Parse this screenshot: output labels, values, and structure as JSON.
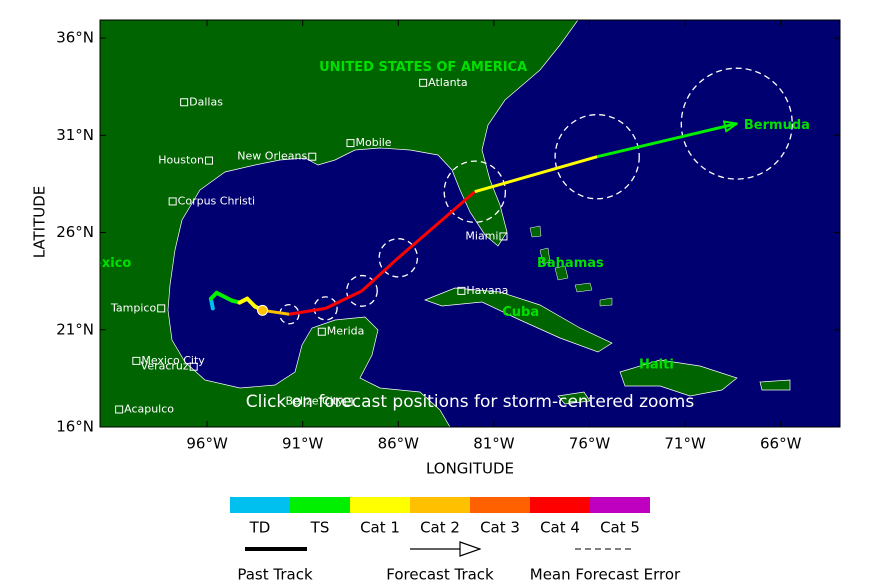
{
  "map": {
    "x_label": "LONGITUDE",
    "y_label": "LATITUDE",
    "lon_range": [
      -101.6,
      -62.9
    ],
    "lat_range": [
      16,
      36.93
    ],
    "x_ticks": [
      {
        "value": -96,
        "label": "96°W"
      },
      {
        "value": -91,
        "label": "91°W"
      },
      {
        "value": -86,
        "label": "86°W"
      },
      {
        "value": -81,
        "label": "81°W"
      },
      {
        "value": -76,
        "label": "76°W"
      },
      {
        "value": -71,
        "label": "71°W"
      },
      {
        "value": -66,
        "label": "66°W"
      }
    ],
    "y_ticks": [
      {
        "value": 16,
        "label": "16°N"
      },
      {
        "value": 21,
        "label": "21°N"
      },
      {
        "value": 26,
        "label": "26°N"
      },
      {
        "value": 31,
        "label": "31°N"
      },
      {
        "value": 36,
        "label": "36°N"
      }
    ],
    "note": "Click on forecast positions for storm-centered zooms"
  },
  "regions": [
    {
      "name": "UNITED STATES OF AMERICA",
      "lon": -84.7,
      "lat": 34.5
    },
    {
      "name": "Bermuda",
      "lon": -66.2,
      "lat": 31.5
    },
    {
      "name": "Bahamas",
      "lon": -77.0,
      "lat": 24.4
    },
    {
      "name": "Cuba",
      "lon": -79.6,
      "lat": 21.9
    },
    {
      "name": "Haiti",
      "lon": -72.5,
      "lat": 19.2
    },
    {
      "name": "Mexico",
      "lon": -101.3,
      "lat": 24.4
    }
  ],
  "cities": [
    {
      "name": "Dallas",
      "lon": -97.2,
      "lat": 32.7,
      "label_side": "right"
    },
    {
      "name": "Atlanta",
      "lon": -84.7,
      "lat": 33.7,
      "label_side": "right"
    },
    {
      "name": "Mobile",
      "lon": -88.5,
      "lat": 30.6,
      "label_side": "right"
    },
    {
      "name": "New Orleans",
      "lon": -90.5,
      "lat": 29.9,
      "label_side": "left"
    },
    {
      "name": "Houston",
      "lon": -95.9,
      "lat": 29.7,
      "label_side": "left"
    },
    {
      "name": "Corpus Christi",
      "lon": -97.8,
      "lat": 27.6,
      "label_side": "right"
    },
    {
      "name": "Miami",
      "lon": -80.5,
      "lat": 25.8,
      "label_side": "left"
    },
    {
      "name": "Havana",
      "lon": -82.7,
      "lat": 23.0,
      "label_side": "right"
    },
    {
      "name": "Tampico",
      "lon": -98.4,
      "lat": 22.1,
      "label_side": "left"
    },
    {
      "name": "Merida",
      "lon": -90.0,
      "lat": 20.9,
      "label_side": "right"
    },
    {
      "name": "Mexico City",
      "lon": -99.7,
      "lat": 19.4,
      "label_side": "right"
    },
    {
      "name": "Veracruz",
      "lon": -96.7,
      "lat": 19.1,
      "label_side": "left"
    },
    {
      "name": "Acapulco",
      "lon": -100.6,
      "lat": 16.9,
      "label_side": "right"
    },
    {
      "name": "Belize City",
      "lon": -88.6,
      "lat": 17.3,
      "label_side": "left"
    }
  ],
  "track": {
    "past": [
      {
        "lon": -95.7,
        "lat": 22.1,
        "category": "TD"
      },
      {
        "lon": -95.8,
        "lat": 22.6,
        "category": "TS"
      },
      {
        "lon": -95.5,
        "lat": 22.9,
        "category": "TS"
      },
      {
        "lon": -94.7,
        "lat": 22.5,
        "category": "TS"
      },
      {
        "lon": -94.3,
        "lat": 22.4,
        "category": "Cat 1"
      },
      {
        "lon": -93.9,
        "lat": 22.6,
        "category": "Cat 1"
      },
      {
        "lon": -93.5,
        "lat": 22.2,
        "category": "Cat 1"
      },
      {
        "lon": -93.1,
        "lat": 22.0,
        "category": "Cat 2"
      }
    ],
    "forecast": [
      {
        "lon": -91.7,
        "lat": 21.8,
        "category": "Cat 4",
        "error_radius": 0.5
      },
      {
        "lon": -89.8,
        "lat": 22.1,
        "category": "Cat 4",
        "error_radius": 0.6
      },
      {
        "lon": -87.9,
        "lat": 23.0,
        "category": "Cat 4",
        "error_radius": 0.8
      },
      {
        "lon": -86.0,
        "lat": 24.7,
        "category": "Cat 4",
        "error_radius": 1.0
      },
      {
        "lon": -82.0,
        "lat": 28.1,
        "category": "Cat 1",
        "error_radius": 1.6
      },
      {
        "lon": -75.6,
        "lat": 29.9,
        "category": "TS",
        "error_radius": 2.2
      },
      {
        "lon": -68.3,
        "lat": 31.6,
        "category": "TS",
        "error_radius": 2.9
      }
    ]
  },
  "legend": {
    "categories": [
      {
        "name": "TD",
        "color": "#00c0f0"
      },
      {
        "name": "TS",
        "color": "#00f000"
      },
      {
        "name": "Cat 1",
        "color": "#ffff00"
      },
      {
        "name": "Cat 2",
        "color": "#ffc000"
      },
      {
        "name": "Cat 3",
        "color": "#ff6000"
      },
      {
        "name": "Cat 4",
        "color": "#ff0000"
      },
      {
        "name": "Cat 5",
        "color": "#c000c0"
      }
    ],
    "items": [
      "Past Track",
      "Forecast Track",
      "Mean Forecast Error"
    ]
  }
}
